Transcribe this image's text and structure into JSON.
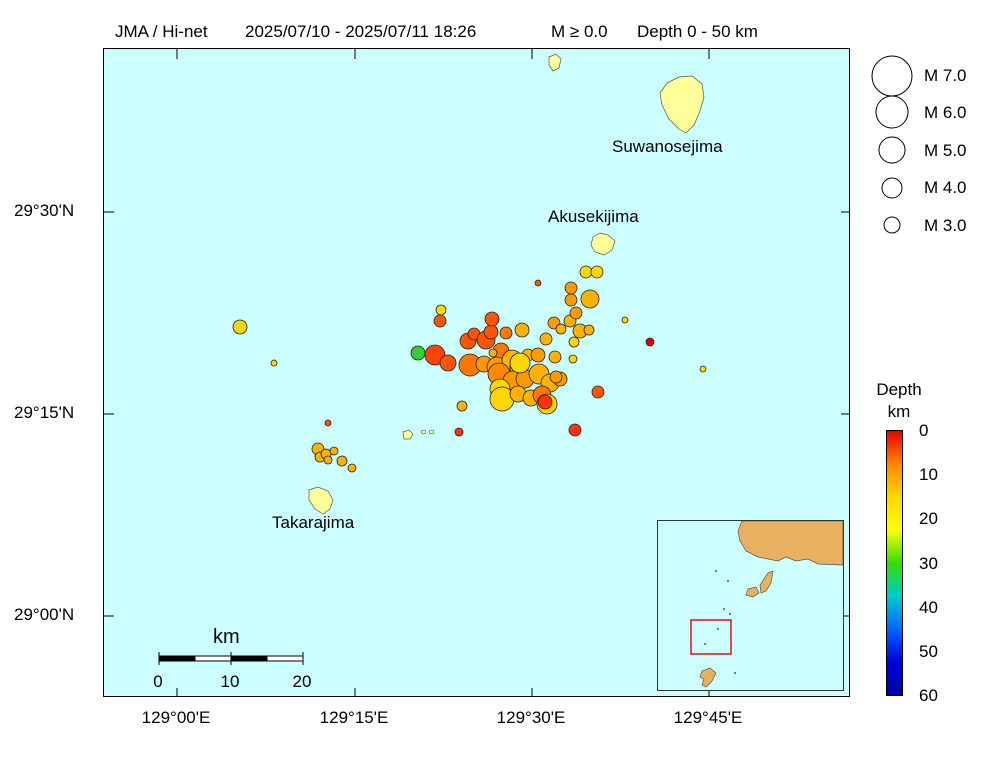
{
  "header": {
    "source": "JMA / Hi-net",
    "period": "2025/07/10 - 2025/07/11 18:26",
    "magnitude": "M ≥ 0.0",
    "depth": "Depth 0 - 50 km"
  },
  "axes": {
    "lat_labels": [
      "29°30'N",
      "29°15'N",
      "29°00'N"
    ],
    "lon_labels": [
      "129°00'E",
      "129°15'E",
      "129°30'E",
      "129°45'E"
    ]
  },
  "places": {
    "suwanosejima": "Suwanosejima",
    "akusekijima": "Akusekijima",
    "takarajima": "Takarajima"
  },
  "magnitude_legend": [
    "M 7.0",
    "M 6.0",
    "M 5.0",
    "M 4.0",
    "M 3.0"
  ],
  "depth_legend": {
    "title_line1": "Depth",
    "title_line2": "km",
    "ticks": [
      "0",
      "10",
      "20",
      "30",
      "40",
      "50",
      "60"
    ],
    "colors": [
      "#e60000",
      "#ff8800",
      "#ffd700",
      "#ffff00",
      "#33dd00",
      "#00cccc",
      "#0066ff",
      "#0000dd",
      "#0000aa"
    ]
  },
  "scale_bar": {
    "unit": "km",
    "labels": [
      "0",
      "10",
      "20"
    ]
  },
  "colors": {
    "sea": "#ccffff",
    "land": "#ffff99",
    "inset_land": "#e8b060",
    "inset_box": "#e60000"
  }
}
